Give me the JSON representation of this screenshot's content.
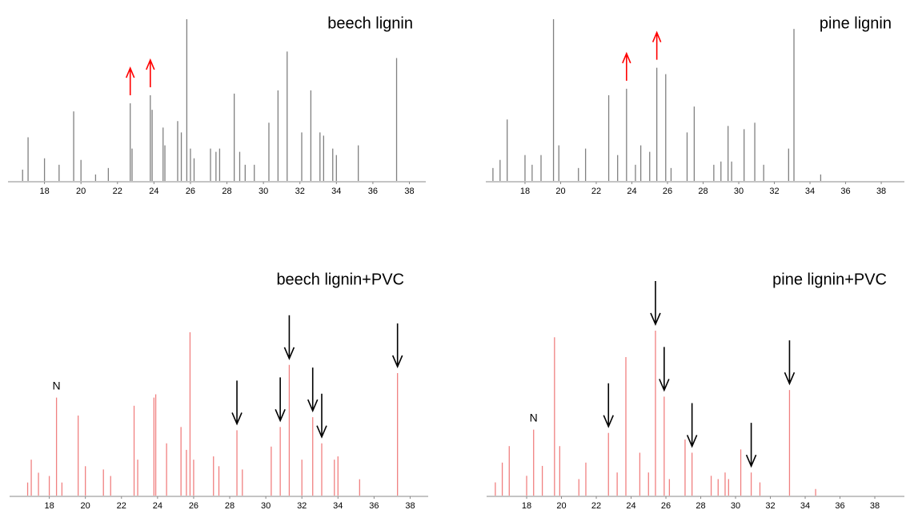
{
  "chart_data": [
    {
      "type": "peaks",
      "title": "beech lignin",
      "color": "#808080",
      "x": [
        16.8,
        17.1,
        18.0,
        18.8,
        19.6,
        20.0,
        20.8,
        21.5,
        22.7,
        22.8,
        23.8,
        23.9,
        24.5,
        24.6,
        25.3,
        25.5,
        25.8,
        26.0,
        26.2,
        27.1,
        27.4,
        27.6,
        28.4,
        28.7,
        29.0,
        29.5,
        30.3,
        30.8,
        31.3,
        32.1,
        32.6,
        33.1,
        33.3,
        33.8,
        34.0,
        35.2,
        37.3
      ],
      "values": [
        7,
        27,
        14,
        10,
        43,
        13,
        4,
        8,
        48,
        20,
        53,
        44,
        33,
        22,
        37,
        30,
        100,
        20,
        14,
        20,
        18,
        20,
        54,
        18,
        10,
        10,
        36,
        56,
        80,
        30,
        56,
        30,
        28,
        20,
        16,
        22,
        76
      ],
      "xlim": [
        16,
        38.9
      ],
      "ylim": [
        0,
        100
      ],
      "xticks": [
        18,
        20,
        22,
        24,
        26,
        28,
        30,
        32,
        34,
        36,
        38
      ],
      "arrows": {
        "x": [
          22.7,
          23.8
        ],
        "direction": "up",
        "color": "#ff0000"
      }
    },
    {
      "type": "peaks",
      "title": "pine lignin",
      "color": "#808080",
      "x": [
        16.2,
        16.6,
        17.0,
        18.0,
        18.4,
        18.9,
        19.6,
        19.9,
        21.0,
        21.4,
        22.7,
        23.2,
        23.7,
        24.2,
        24.5,
        25.0,
        25.4,
        25.9,
        26.2,
        27.1,
        27.5,
        28.6,
        29.0,
        29.4,
        29.6,
        30.3,
        30.9,
        31.4,
        32.8,
        33.1,
        34.6
      ],
      "values": [
        8,
        13,
        38,
        16,
        10,
        16,
        100,
        22,
        8,
        20,
        53,
        16,
        57,
        10,
        22,
        18,
        70,
        66,
        8,
        30,
        46,
        10,
        12,
        34,
        12,
        32,
        36,
        10,
        20,
        94,
        4
      ],
      "xlim": [
        15.8,
        39.3
      ],
      "ylim": [
        0,
        100
      ],
      "xticks": [
        18,
        20,
        22,
        24,
        26,
        28,
        30,
        32,
        34,
        36,
        38
      ],
      "arrows": {
        "x": [
          23.7,
          25.4
        ],
        "direction": "up",
        "color": "#ff0000"
      }
    },
    {
      "type": "peaks",
      "title": "beech lignin+PVC",
      "color": "#f08080",
      "x": [
        16.8,
        17.0,
        17.4,
        18.0,
        18.4,
        18.7,
        19.6,
        20.0,
        21.0,
        21.4,
        22.7,
        22.9,
        23.8,
        23.9,
        24.5,
        25.3,
        25.6,
        25.8,
        26.0,
        27.1,
        27.4,
        28.4,
        28.7,
        30.3,
        30.8,
        31.3,
        32.0,
        32.6,
        33.1,
        33.8,
        34.0,
        35.2,
        37.3
      ],
      "values": [
        8,
        22,
        14,
        12,
        60,
        8,
        49,
        18,
        16,
        12,
        55,
        22,
        60,
        62,
        32,
        42,
        28,
        100,
        22,
        24,
        18,
        40,
        16,
        30,
        42,
        80,
        22,
        48,
        32,
        22,
        24,
        10,
        75
      ],
      "xlim": [
        15.8,
        39.0
      ],
      "ylim": [
        0,
        100
      ],
      "xticks": [
        18,
        20,
        22,
        24,
        26,
        28,
        30,
        32,
        34,
        36,
        38
      ],
      "arrows": {
        "x": [
          28.4,
          30.8,
          31.3,
          32.6,
          33.1,
          37.3
        ],
        "direction": "down",
        "color": "#000000"
      },
      "annotations": [
        {
          "text": "N",
          "x": 18.4,
          "color": "#ff0000"
        }
      ]
    },
    {
      "type": "peaks",
      "title": "pine lignin+PVC",
      "color": "#f08080",
      "x": [
        16.2,
        16.6,
        17.0,
        18.0,
        18.4,
        18.9,
        19.6,
        19.9,
        21.0,
        21.4,
        22.7,
        23.2,
        23.7,
        24.5,
        25.0,
        25.4,
        25.9,
        26.2,
        27.1,
        27.5,
        28.6,
        29.0,
        29.4,
        29.6,
        30.3,
        30.9,
        31.4,
        33.1,
        34.6
      ],
      "values": [
        8,
        20,
        30,
        12,
        40,
        18,
        96,
        30,
        10,
        20,
        38,
        14,
        84,
        26,
        14,
        100,
        60,
        10,
        34,
        26,
        12,
        10,
        14,
        10,
        28,
        14,
        8,
        64,
        4
      ],
      "xlim": [
        15.7,
        39.7
      ],
      "ylim": [
        0,
        100
      ],
      "xticks": [
        18,
        20,
        22,
        24,
        26,
        28,
        30,
        32,
        34,
        36,
        38
      ],
      "arrows": {
        "x": [
          22.7,
          25.4,
          25.9,
          27.5,
          30.9,
          33.1
        ],
        "direction": "down",
        "color": "#000000"
      },
      "annotations": [
        {
          "text": "N",
          "x": 18.4,
          "color": "#ff0000"
        }
      ]
    }
  ]
}
